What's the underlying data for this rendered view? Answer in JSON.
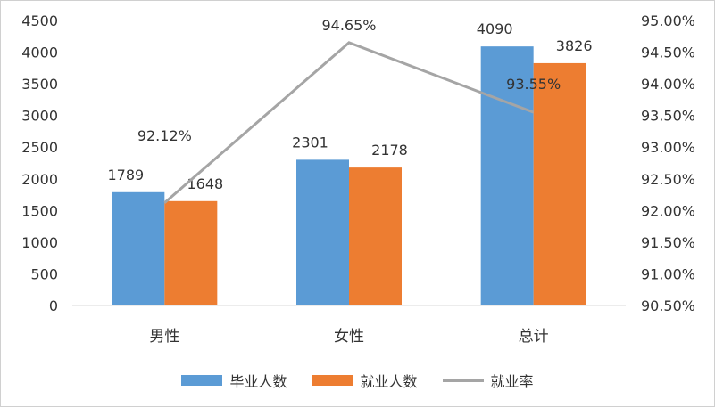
{
  "chart_data": {
    "type": "bar",
    "categories": [
      "男性",
      "女性",
      "总计"
    ],
    "series": [
      {
        "name": "毕业人数",
        "type": "bar",
        "axis": "left",
        "color": "#5b9bd5",
        "values": [
          1789,
          2301,
          4090
        ],
        "labels": [
          "1789",
          "2301",
          "4090"
        ]
      },
      {
        "name": "就业人数",
        "type": "bar",
        "axis": "left",
        "color": "#ed7d31",
        "values": [
          1648,
          2178,
          3826
        ],
        "labels": [
          "1648",
          "2178",
          "3826"
        ]
      },
      {
        "name": "就业率",
        "type": "line",
        "axis": "right",
        "color": "#a5a5a5",
        "values": [
          92.12,
          94.65,
          93.55
        ],
        "labels": [
          "92.12%",
          "94.65%",
          "93.55%"
        ]
      }
    ],
    "y_left": {
      "min": 0,
      "max": 4500,
      "ticks": [
        "0",
        "500",
        "1000",
        "1500",
        "2000",
        "2500",
        "3000",
        "3500",
        "4000",
        "4500"
      ]
    },
    "y_right": {
      "min": 90.5,
      "max": 95.0,
      "ticks": [
        "90.50%",
        "91.00%",
        "91.50%",
        "92.00%",
        "92.50%",
        "93.00%",
        "93.50%",
        "94.00%",
        "94.50%",
        "95.00%"
      ]
    },
    "legend": "bottom",
    "grid": false
  }
}
